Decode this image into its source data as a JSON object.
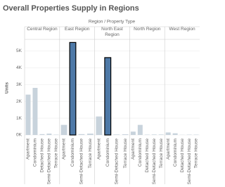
{
  "chart_data": {
    "type": "bar",
    "title": "Overall Properties Supply in Regions",
    "header": "Region / Property Type",
    "y_label": "Units",
    "ylim": [
      0,
      5600
    ],
    "yticks": [
      {
        "value": 0,
        "label": "0K"
      },
      {
        "value": 1000,
        "label": "1K"
      },
      {
        "value": 2000,
        "label": "2K"
      },
      {
        "value": 3000,
        "label": "3K"
      },
      {
        "value": 4000,
        "label": "4K"
      },
      {
        "value": 5000,
        "label": "5K"
      }
    ],
    "grid": true,
    "facets": [
      {
        "name": "Central Region",
        "categories": [
          "Apartment",
          "Condominium",
          "Detached House",
          "Semi-Detached House",
          "Terrace House"
        ],
        "values": [
          2400,
          2800,
          50,
          80,
          20
        ],
        "colors": [
          "#c8d3dc",
          "#c8d3dc",
          "#c8d3dc",
          "#c8d3dc",
          "#c8d3dc"
        ]
      },
      {
        "name": "East Region",
        "categories": [
          "Apartment",
          "Condominium",
          "Semi-Detached House",
          "Terrace House"
        ],
        "values": [
          600,
          5500,
          50,
          80
        ],
        "colors": [
          "#c8d3dc",
          "#4e79a7",
          "#c8d3dc",
          "#c8d3dc"
        ]
      },
      {
        "name": "North East Region",
        "categories": [
          "Apartment",
          "Condominium",
          "Semi-Detached House",
          "Terrace House"
        ],
        "values": [
          1100,
          4600,
          30,
          40
        ],
        "colors": [
          "#c8d3dc",
          "#4e79a7",
          "#c8d3dc",
          "#c8d3dc"
        ]
      },
      {
        "name": "North Region",
        "categories": [
          "Apartment",
          "Condominium",
          "Detached House",
          "Semi-Detached House",
          "Terrace House"
        ],
        "values": [
          200,
          600,
          20,
          30,
          30
        ],
        "colors": [
          "#c8d3dc",
          "#c8d3dc",
          "#c8d3dc",
          "#c8d3dc",
          "#c8d3dc"
        ]
      },
      {
        "name": "West Region",
        "categories": [
          "Apartment",
          "Condominium",
          "Detached House",
          "Semi-Detached House",
          "Terrace House"
        ],
        "values": [
          150,
          100,
          10,
          20,
          20
        ],
        "colors": [
          "#c8d3dc",
          "#c8d3dc",
          "#c8d3dc",
          "#c8d3dc",
          "#c8d3dc"
        ]
      }
    ]
  }
}
